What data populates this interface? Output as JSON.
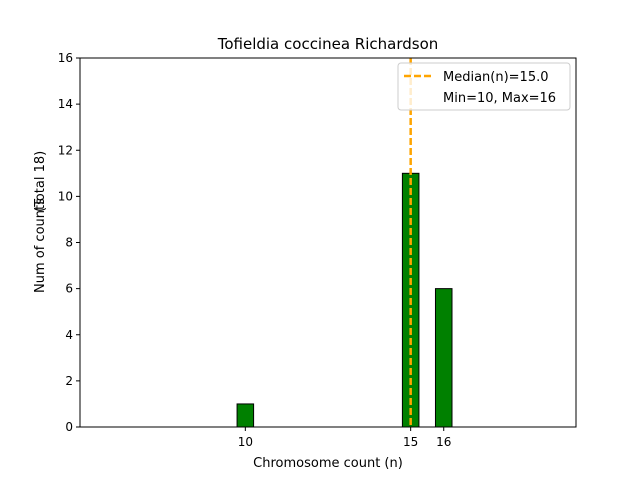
{
  "chart_data": {
    "type": "bar",
    "title": "Tofieldia coccinea Richardson",
    "xlabel": "Chromosome count (n)",
    "ylabel": "Num of counts",
    "ylabel_total": "(Total 18)",
    "xlim": [
      5,
      20
    ],
    "ylim": [
      0,
      16
    ],
    "yticks": [
      0,
      2,
      4,
      6,
      8,
      10,
      12,
      14,
      16
    ],
    "xticks": [
      {
        "value": 10,
        "label": "10"
      },
      {
        "value": 15,
        "label": "15"
      },
      {
        "value": 16,
        "label": "16"
      }
    ],
    "bar_width": 0.5,
    "bars": [
      {
        "x": 10,
        "count": 1
      },
      {
        "x": 15,
        "count": 11
      },
      {
        "x": 16,
        "count": 6
      }
    ],
    "empty_bins_from": 16.5,
    "empty_bins_to": 17.5,
    "median": 15.0,
    "colors": {
      "bar_fill": "#008000",
      "bar_edge": "#000000",
      "median_line": "#FFA500"
    },
    "legend": {
      "position": "top-right",
      "entries": [
        "Median(n)=15.0",
        "Min=10, Max=16"
      ]
    },
    "grid": false
  }
}
